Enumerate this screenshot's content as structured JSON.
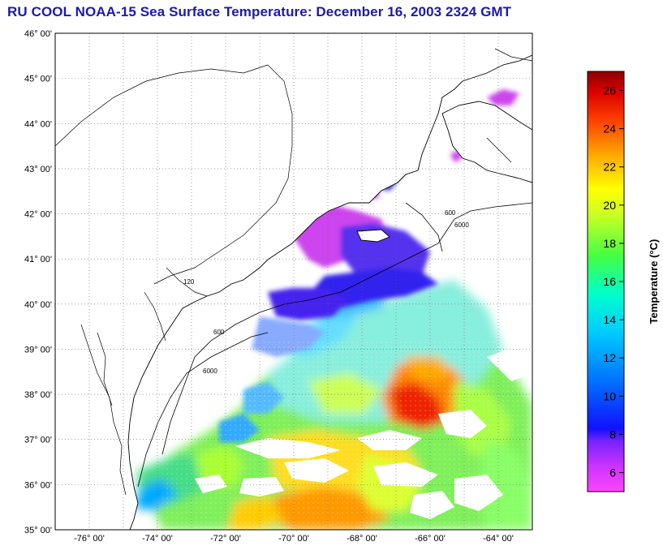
{
  "title": "RU COOL  NOAA-15  Sea Surface Temperature:  December 16, 2003 2324 GMT",
  "map": {
    "lon_range": [
      -77,
      -63
    ],
    "lat_range": [
      35,
      46
    ],
    "lat_ticks": [
      "35° 00'",
      "36° 00'",
      "37° 00'",
      "38° 00'",
      "39° 00'",
      "40° 00'",
      "41° 00'",
      "42° 00'",
      "43° 00'",
      "44° 00'",
      "45° 00'",
      "46° 00'"
    ],
    "lon_ticks": [
      "-76° 00'",
      "-74° 00'",
      "-72° 00'",
      "-70° 00'",
      "-68° 00'",
      "-66° 00'",
      "-64° 00'"
    ],
    "contour_labels": [
      "120",
      "600",
      "6000"
    ]
  },
  "colorbar": {
    "label": "Temperature (°C)",
    "range": [
      5,
      27
    ],
    "ticks": [
      "6",
      "8",
      "10",
      "12",
      "14",
      "16",
      "18",
      "20",
      "22",
      "24",
      "26"
    ]
  },
  "colors": {
    "title": "#1a1ab0",
    "scale": [
      "#ff33ff",
      "#cc33ff",
      "#2222ff",
      "#0066ff",
      "#00ccff",
      "#00ffcc",
      "#33ff66",
      "#ccff33",
      "#ffff00",
      "#ffaa00",
      "#ff5500",
      "#ee1100",
      "#aa0000"
    ]
  }
}
